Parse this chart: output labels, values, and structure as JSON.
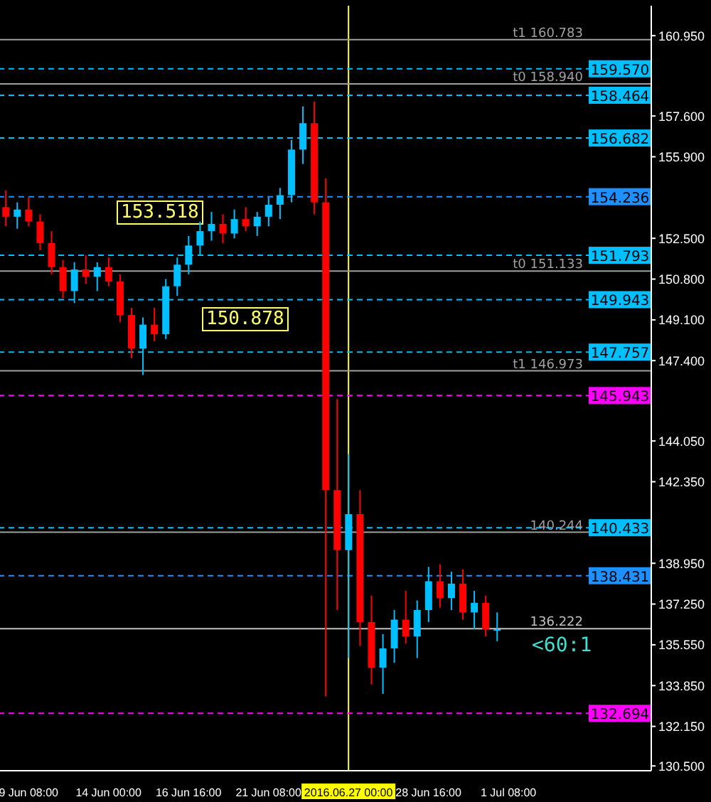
{
  "chart_data": {
    "type": "candlestick",
    "categories": [
      null,
      null,
      "9 Jun 08:00",
      null,
      null,
      null,
      null,
      null,
      null,
      "14 Jun 00:00",
      null,
      null,
      null,
      null,
      null,
      null,
      "16 Jun 16:00",
      null,
      null,
      null,
      null,
      null,
      null,
      "21 Jun 08:00",
      null,
      null,
      null,
      null,
      null,
      null,
      "2016.06.27 00:00",
      null,
      null,
      null,
      null,
      null,
      null,
      "28 Jun 16:00",
      null,
      null,
      null,
      null,
      null,
      null,
      "1 Jul 08:00",
      null,
      null,
      null,
      null,
      null,
      null,
      null,
      null,
      null,
      null,
      null,
      null
    ],
    "ohlc": [
      [
        153.8,
        154.5,
        153.0,
        153.4
      ],
      [
        153.4,
        154.0,
        152.9,
        153.7
      ],
      [
        153.7,
        154.2,
        153.0,
        153.2
      ],
      [
        153.2,
        153.5,
        152.0,
        152.3
      ],
      [
        152.3,
        152.8,
        151.0,
        151.3
      ],
      [
        151.3,
        151.6,
        150.0,
        150.3
      ],
      [
        150.3,
        151.5,
        149.8,
        151.2
      ],
      [
        151.2,
        151.8,
        150.6,
        150.9
      ],
      [
        150.9,
        151.5,
        150.3,
        151.3
      ],
      [
        151.3,
        151.7,
        150.5,
        150.7
      ],
      [
        150.7,
        151.0,
        149.0,
        149.3
      ],
      [
        149.3,
        149.6,
        147.5,
        147.9
      ],
      [
        147.9,
        149.2,
        146.8,
        148.9
      ],
      [
        148.9,
        149.6,
        148.2,
        148.5
      ],
      [
        148.5,
        150.8,
        148.3,
        150.5
      ],
      [
        150.5,
        151.7,
        150.1,
        151.4
      ],
      [
        151.4,
        152.6,
        151.0,
        152.2
      ],
      [
        152.2,
        153.2,
        151.8,
        152.8
      ],
      [
        152.8,
        153.6,
        152.4,
        153.1
      ],
      [
        153.1,
        153.5,
        152.3,
        152.7
      ],
      [
        152.7,
        153.7,
        152.5,
        153.3
      ],
      [
        153.3,
        153.8,
        152.8,
        153.0
      ],
      [
        153.0,
        153.6,
        152.6,
        153.4
      ],
      [
        153.4,
        154.2,
        153.0,
        153.9
      ],
      [
        153.9,
        154.6,
        153.3,
        154.3
      ],
      [
        154.3,
        156.6,
        154.0,
        156.2
      ],
      [
        156.2,
        158.0,
        155.6,
        157.3
      ],
      [
        157.3,
        158.2,
        153.5,
        154.0
      ],
      [
        154.0,
        155.0,
        133.4,
        142.0
      ],
      [
        142.0,
        145.8,
        137.0,
        139.5
      ],
      [
        139.5,
        143.5,
        135.0,
        141.0
      ],
      [
        141.0,
        142.0,
        135.5,
        136.5
      ],
      [
        136.5,
        137.6,
        133.9,
        134.6
      ],
      [
        134.6,
        136.0,
        133.5,
        135.4
      ],
      [
        135.4,
        137.0,
        134.8,
        136.6
      ],
      [
        136.6,
        137.8,
        135.6,
        135.9
      ],
      [
        135.9,
        137.4,
        135.0,
        137.0
      ],
      [
        137.0,
        138.8,
        136.5,
        138.2
      ],
      [
        138.2,
        138.9,
        137.1,
        137.5
      ],
      [
        137.5,
        138.6,
        137.0,
        138.1
      ],
      [
        138.1,
        138.7,
        136.6,
        136.9
      ],
      [
        136.9,
        137.8,
        136.2,
        137.3
      ],
      [
        137.3,
        137.6,
        135.9,
        136.2
      ],
      [
        136.2,
        136.9,
        135.7,
        136.2
      ],
      null,
      null,
      null,
      null,
      null,
      null,
      null,
      null,
      null,
      null,
      null,
      null,
      null
    ],
    "colors": [
      "#ff0000",
      "#00bfff",
      "#ff0000",
      "#ff0000",
      "#ff0000",
      "#ff0000",
      "#00bfff",
      "#ff0000",
      "#00bfff",
      "#ff0000",
      "#ff0000",
      "#ff0000",
      "#00bfff",
      "#ff0000",
      "#00bfff",
      "#00bfff",
      "#00bfff",
      "#00bfff",
      "#00bfff",
      "#ff0000",
      "#00bfff",
      "#ff0000",
      "#00bfff",
      "#00bfff",
      "#00bfff",
      "#00bfff",
      "#00bfff",
      "#ff0000",
      "#ff0000",
      "#ff0000",
      "#00bfff",
      "#ff0000",
      "#ff0000",
      "#00bfff",
      "#00bfff",
      "#ff0000",
      "#00bfff",
      "#00bfff",
      "#ff0000",
      "#00bfff",
      "#ff0000",
      "#00bfff",
      "#ff0000",
      "#00bfff",
      null,
      null,
      null,
      null,
      null,
      null,
      null,
      null,
      null,
      null,
      null,
      null,
      null
    ],
    "ylim": [
      130.3,
      162.2
    ],
    "yticks": [
      {
        "value": 160.95,
        "label": "160.950"
      },
      {
        "value": 157.6,
        "label": "157.600"
      },
      {
        "value": 155.9,
        "label": "155.900"
      },
      {
        "value": 152.5,
        "label": "152.500"
      },
      {
        "value": 150.8,
        "label": "150.800"
      },
      {
        "value": 149.1,
        "label": "149.100"
      },
      {
        "value": 147.4,
        "label": "147.400"
      },
      {
        "value": 144.05,
        "label": "144.050"
      },
      {
        "value": 142.35,
        "label": "142.350"
      },
      {
        "value": 138.95,
        "label": "138.950"
      },
      {
        "value": 137.25,
        "label": "137.250"
      },
      {
        "value": 135.55,
        "label": "135.550"
      },
      {
        "value": 133.85,
        "label": "133.850"
      },
      {
        "value": 132.15,
        "label": "132.150"
      },
      {
        "value": 130.5,
        "label": "130.500"
      }
    ],
    "ref_lines": [
      {
        "axis": "y",
        "value": 160.783,
        "label": "t1 160.783",
        "color": "#a0a0a0",
        "line_style": "solid"
      },
      {
        "axis": "y",
        "value": 159.57,
        "label": "159.570",
        "color": "#00bfff",
        "line_style": "dashed"
      },
      {
        "axis": "y",
        "value": 158.94,
        "label": "t0 158.940",
        "color": "#a0a0a0",
        "line_style": "solid"
      },
      {
        "axis": "y",
        "value": 158.464,
        "label": "158.464",
        "color": "#00bfff",
        "line_style": "dashed"
      },
      {
        "axis": "y",
        "value": 156.682,
        "label": "156.682",
        "color": "#00bfff",
        "line_style": "dashed"
      },
      {
        "axis": "y",
        "value": 154.236,
        "label": "154.236",
        "color": "#1e90ff",
        "line_style": "dashed"
      },
      {
        "axis": "y",
        "value": 151.793,
        "label": "151.793",
        "color": "#00bfff",
        "line_style": "dashed"
      },
      {
        "axis": "y",
        "value": 151.133,
        "label": "t0 151.133",
        "color": "#a0a0a0",
        "line_style": "solid"
      },
      {
        "axis": "y",
        "value": 149.943,
        "label": "149.943",
        "color": "#00bfff",
        "line_style": "dashed"
      },
      {
        "axis": "y",
        "value": 147.757,
        "label": "147.757",
        "color": "#00bfff",
        "line_style": "dashed"
      },
      {
        "axis": "y",
        "value": 146.973,
        "label": "t1 146.973",
        "color": "#a0a0a0",
        "line_style": "solid"
      },
      {
        "axis": "y",
        "value": 145.943,
        "label": "145.943",
        "color": "#ff00ff",
        "line_style": "dashed"
      },
      {
        "axis": "y",
        "value": 140.433,
        "label": "140.433",
        "color": "#00bfff",
        "line_style": "dashed"
      },
      {
        "axis": "y",
        "value": 140.244,
        "label": "140.244",
        "color": "#a0a0a0",
        "line_style": "solid"
      },
      {
        "axis": "y",
        "value": 138.431,
        "label": "138.431",
        "color": "#1e90ff",
        "line_style": "dashed"
      },
      {
        "axis": "y",
        "value": 136.222,
        "label": "136.222",
        "color": "#c0c0c0",
        "line_style": "solid"
      },
      {
        "axis": "y",
        "value": 132.694,
        "label": "132.694",
        "color": "#ff00ff",
        "line_style": "dashed"
      },
      {
        "axis": "x",
        "value": "2016.06.27 00:00",
        "color": "#ffff00",
        "line_style": "solid"
      }
    ],
    "annotations": [
      "153.518",
      "150.878",
      "<60:1"
    ],
    "grid": false,
    "legend": false
  }
}
